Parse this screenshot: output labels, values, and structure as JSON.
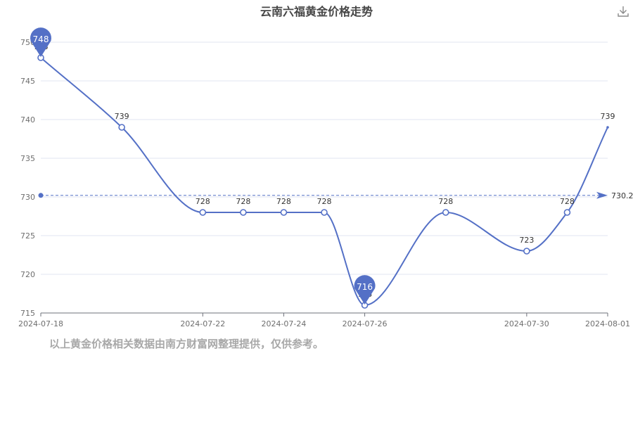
{
  "chart_data": {
    "type": "line",
    "title": "云南六福黄金价格走势",
    "x": [
      "2024-07-18",
      "2024-07-20",
      "2024-07-22",
      "2024-07-23",
      "2024-07-24",
      "2024-07-25",
      "2024-07-26",
      "2024-07-28",
      "2024-07-30",
      "2024-07-31",
      "2024-08-01"
    ],
    "series": [
      {
        "values": [
          748,
          739,
          728,
          728,
          728,
          728,
          716,
          728,
          723,
          728,
          739
        ]
      }
    ],
    "x_ticks": [
      "2024-07-18",
      "2024-07-22",
      "2024-07-24",
      "2024-07-26",
      "2024-07-30",
      "2024-08-01"
    ],
    "y_ticks": [
      715,
      720,
      725,
      730,
      735,
      740,
      745,
      750
    ],
    "ylim": [
      715,
      750
    ],
    "xlim": [
      "2024-07-18",
      "2024-08-01"
    ],
    "max_marker": {
      "x": "2024-07-18",
      "value": 748,
      "label": "748"
    },
    "min_marker": {
      "x": "2024-07-26",
      "value": 716,
      "label": "716"
    },
    "average_line": {
      "value": 730.2,
      "label": "730.2"
    },
    "grid": true,
    "smooth": true,
    "line_color": "#5470c6"
  },
  "footer": {
    "note": "以上黄金价格相关数据由南方财富网整理提供，仅供参考。"
  },
  "toolbar": {
    "download_icon": "download-icon"
  }
}
